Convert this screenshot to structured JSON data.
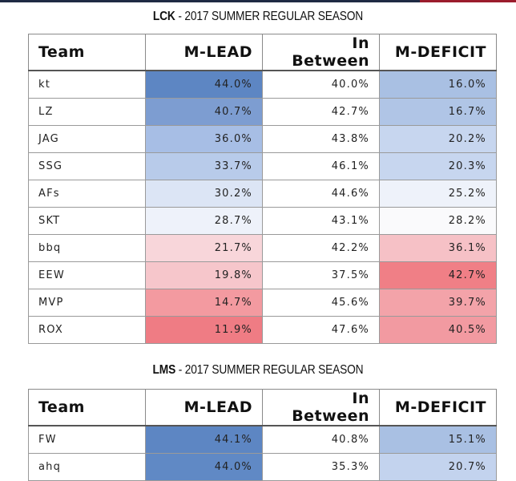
{
  "columns": [
    "Team",
    "M-LEAD",
    "In Between",
    "M-DEFICIT"
  ],
  "sections": [
    {
      "league": "LCK",
      "subtitle": " - 2017 SUMMER REGULAR SEASON",
      "rows": [
        {
          "team": "kt",
          "lead": "44.0%",
          "between": "40.0%",
          "deficit": "16.0%",
          "lead_color": "#5d86c3",
          "deficit_color": "#a9c0e3"
        },
        {
          "team": "LZ",
          "lead": "40.7%",
          "between": "42.7%",
          "deficit": "16.7%",
          "lead_color": "#7d9dd1",
          "deficit_color": "#b0c5e6"
        },
        {
          "team": "JAG",
          "lead": "36.0%",
          "between": "43.8%",
          "deficit": "20.2%",
          "lead_color": "#a7bee5",
          "deficit_color": "#c7d6ef"
        },
        {
          "team": "SSG",
          "lead": "33.7%",
          "between": "46.1%",
          "deficit": "20.3%",
          "lead_color": "#b8cbea",
          "deficit_color": "#c7d6ef"
        },
        {
          "team": "AFs",
          "lead": "30.2%",
          "between": "44.6%",
          "deficit": "25.2%",
          "lead_color": "#dce5f5",
          "deficit_color": "#eef2fa"
        },
        {
          "team": "SKT",
          "lead": "28.7%",
          "between": "43.1%",
          "deficit": "28.2%",
          "lead_color": "#eef2fa",
          "deficit_color": "#fafafc"
        },
        {
          "team": "bbq",
          "lead": "21.7%",
          "between": "42.2%",
          "deficit": "36.1%",
          "lead_color": "#f8d6da",
          "deficit_color": "#f6c1c6"
        },
        {
          "team": "EEW",
          "lead": "19.8%",
          "between": "37.5%",
          "deficit": "42.7%",
          "lead_color": "#f6c6cb",
          "deficit_color": "#f07f86"
        },
        {
          "team": "MVP",
          "lead": "14.7%",
          "between": "45.6%",
          "deficit": "39.7%",
          "lead_color": "#f39aa0",
          "deficit_color": "#f3a3a9"
        },
        {
          "team": "ROX",
          "lead": "11.9%",
          "between": "47.6%",
          "deficit": "40.5%",
          "lead_color": "#ef7c84",
          "deficit_color": "#f29aa1"
        }
      ]
    },
    {
      "league": "LMS",
      "subtitle": " - 2017 SUMMER REGULAR SEASON",
      "rows": [
        {
          "team": "FW",
          "lead": "44.1%",
          "between": "40.8%",
          "deficit": "15.1%",
          "lead_color": "#5d86c3",
          "deficit_color": "#a9c0e3"
        },
        {
          "team": "ahq",
          "lead": "44.0%",
          "between": "35.3%",
          "deficit": "20.7%",
          "lead_color": "#6089c5",
          "deficit_color": "#c3d3ee"
        }
      ]
    }
  ]
}
